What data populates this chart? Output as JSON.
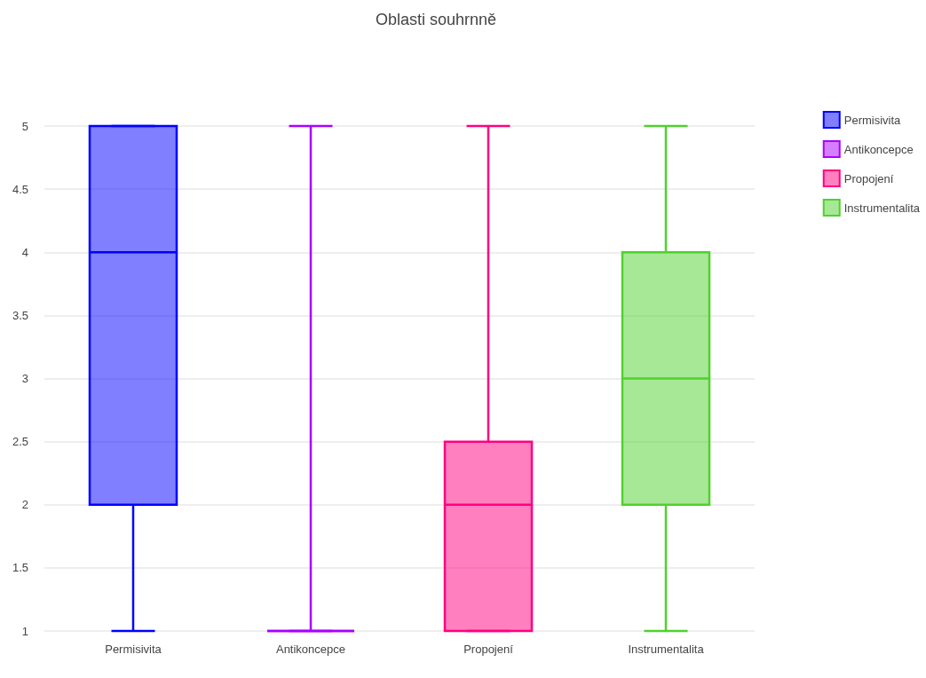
{
  "chart_data": {
    "type": "box",
    "title": "Oblasti souhrnně",
    "categories": [
      "Permisivita",
      "Antikoncepce",
      "Propojení",
      "Instrumentalita"
    ],
    "series": [
      {
        "name": "Permisivita",
        "color": "#0000ff",
        "boxes": [
          {
            "low": 1,
            "q1": 2,
            "median": 4,
            "q3": 5,
            "high": 5
          },
          null,
          null,
          null
        ]
      },
      {
        "name": "Antikoncepce",
        "color": "#aa00ff",
        "boxes": [
          null,
          {
            "low": 1,
            "q1": 1,
            "median": 1,
            "q3": 1,
            "high": 5
          },
          null,
          null
        ]
      },
      {
        "name": "Propojení",
        "color": "#ff0080",
        "boxes": [
          null,
          null,
          {
            "low": 1,
            "q1": 1,
            "median": 2,
            "q3": 2.5,
            "high": 5
          },
          null
        ]
      },
      {
        "name": "Instrumentalita",
        "color": "#4fd12e",
        "boxes": [
          null,
          null,
          null,
          {
            "low": 1,
            "q1": 2,
            "median": 3,
            "q3": 4,
            "high": 5
          }
        ]
      }
    ],
    "ylim": [
      1,
      5
    ],
    "yticks": [
      1,
      1.5,
      2,
      2.5,
      3,
      3.5,
      4,
      4.5,
      5
    ],
    "grid": "y",
    "legend": "top right"
  }
}
